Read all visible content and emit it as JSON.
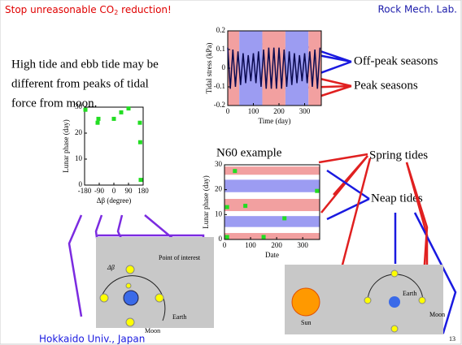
{
  "header": {
    "title_parts": [
      "Stop unreasonable CO",
      "2",
      " reduction!"
    ],
    "lab": "Rock Mech. Lab."
  },
  "text": {
    "paragraph": [
      "High tide and ebb tide may be",
      "different from peaks of tidal",
      "force from moon."
    ],
    "off_peak": "Off-peak seasons",
    "peak": "Peak seasons",
    "spring": "Spring tides",
    "neap": "Neap tides",
    "poi": "Point of interest",
    "dbeta": "Δβ",
    "earth_left": "Earth",
    "moon_left": "Moon",
    "sun": "Sun",
    "earth_right": "Earth",
    "moon_right": "Moon"
  },
  "footer": {
    "affiliation": "Hokkaido Univ., Japan",
    "page": "13"
  },
  "chart_data": [
    {
      "type": "line",
      "xlabel": "Time (day)",
      "ylabel": "Tidal stress (kPa)",
      "x": [
        0,
        10,
        20,
        30,
        40,
        50,
        60,
        70,
        80,
        90,
        100,
        110,
        120,
        130,
        140,
        150,
        160,
        170,
        180,
        190,
        200,
        210,
        220,
        230,
        240,
        250,
        260,
        270,
        280,
        290,
        300,
        310,
        320,
        330,
        340,
        350,
        360
      ],
      "values": [
        0.11,
        -0.11,
        0.1,
        -0.1,
        0.09,
        -0.09,
        0.08,
        -0.08,
        0.07,
        -0.07,
        0.08,
        -0.08,
        0.09,
        -0.1,
        0.1,
        -0.11,
        0.11,
        -0.11,
        0.11,
        -0.11,
        0.11,
        -0.11,
        0.1,
        -0.1,
        0.09,
        -0.09,
        0.08,
        -0.08,
        0.07,
        -0.07,
        0.08,
        -0.08,
        0.09,
        -0.1,
        0.1,
        -0.11,
        0.11
      ],
      "color": "#0a0a50",
      "bands": [
        {
          "range": [
            0,
            45
          ],
          "color": "#f2a0a0"
        },
        {
          "range": [
            45,
            135
          ],
          "color": "#9c9cf2"
        },
        {
          "range": [
            135,
            225
          ],
          "color": "#f2a0a0"
        },
        {
          "range": [
            225,
            315
          ],
          "color": "#9c9cf2"
        },
        {
          "range": [
            315,
            365
          ],
          "color": "#f2a0a0"
        }
      ],
      "xlim": [
        0,
        365
      ],
      "xticks": [
        0,
        100,
        200,
        300
      ],
      "ylim": [
        -0.2,
        0.2
      ],
      "yticks": [
        -0.2,
        -0.1,
        0,
        0.1,
        0.2
      ]
    },
    {
      "type": "scatter",
      "xlabel": "Δβ (degree)",
      "ylabel": "Lunar phase (day)",
      "x": [
        -175,
        -100,
        -95,
        0,
        45,
        90,
        160,
        162,
        165
      ],
      "values": [
        29,
        24,
        25.5,
        25.5,
        28,
        29.5,
        24,
        16.5,
        2
      ],
      "color": "#22dd22",
      "xlim": [
        -180,
        180
      ],
      "xticks": [
        -180,
        -90,
        0,
        90,
        180
      ],
      "ylim": [
        0,
        30
      ],
      "yticks": [
        0,
        10,
        20,
        30
      ]
    },
    {
      "type": "scatter",
      "title": "N60 example",
      "xlabel": "Date",
      "ylabel": "Lunar phase (day)",
      "x": [
        40,
        10,
        80,
        230,
        355,
        10,
        150
      ],
      "values": [
        27.5,
        13,
        13.5,
        8.5,
        19.5,
        1,
        1
      ],
      "color": "#22dd22",
      "hbands": [
        {
          "range": [
            0,
            2.6
          ],
          "color": "#f2a0a0"
        },
        {
          "range": [
            5,
            9.4
          ],
          "color": "#9c9cf2"
        },
        {
          "range": [
            11.4,
            16.3
          ],
          "color": "#f2a0a0"
        },
        {
          "range": [
            19,
            24
          ],
          "color": "#9c9cf2"
        },
        {
          "range": [
            26,
            29.3
          ],
          "color": "#f2a0a0"
        }
      ],
      "xlim": [
        0,
        365
      ],
      "xticks": [
        0,
        100,
        200,
        300
      ],
      "ylim": [
        0,
        30
      ],
      "yticks": [
        0,
        10,
        20,
        30
      ]
    }
  ]
}
